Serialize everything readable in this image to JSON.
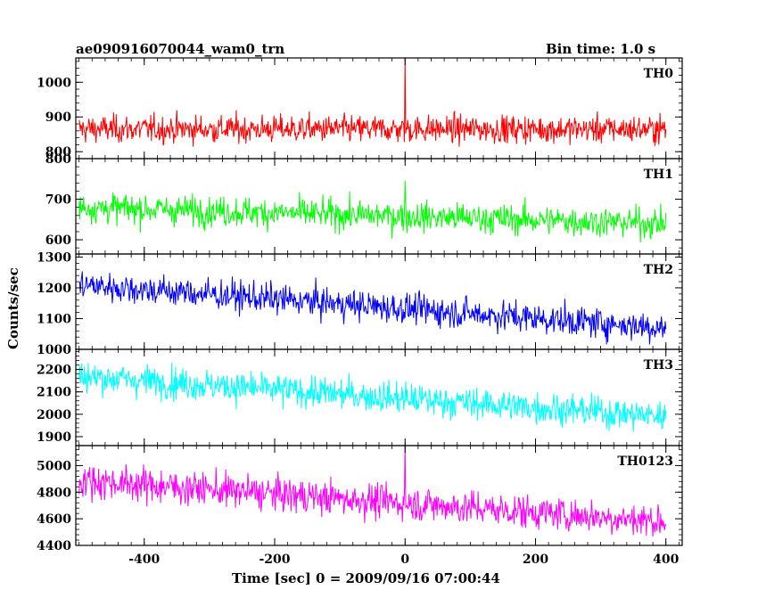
{
  "header": {
    "title_left": "ae090916070044_wam0_trn",
    "title_right": "Bin time: 1.0 s"
  },
  "chart_data": {
    "type": "line",
    "xlabel": "Time [sec] 0 = 2009/09/16 07:00:44",
    "ylabel": "Counts/sec",
    "xlim": [
      -505,
      425
    ],
    "xticks": [
      -400,
      -200,
      0,
      200,
      400
    ],
    "x_range": [
      -500,
      400
    ],
    "bin_time": 1.0,
    "panels": [
      {
        "name": "TH0",
        "color": "#ff0000",
        "ylim": [
          780,
          1070
        ],
        "yticks": [
          800,
          900,
          1000
        ],
        "start": 865,
        "end": 865,
        "noise": 28,
        "spike_value": 1075
      },
      {
        "name": "TH1",
        "color": "#00ff00",
        "ylim": [
          565,
          800
        ],
        "yticks": [
          600,
          700,
          800
        ],
        "start": 680,
        "end": 640,
        "noise": 26,
        "spike_value": 745
      },
      {
        "name": "TH2",
        "color": "#0000ff",
        "ylim": [
          1000,
          1310
        ],
        "yticks": [
          1000,
          1100,
          1200,
          1300
        ],
        "start": 1210,
        "end": 1070,
        "noise": 35,
        "spike_value": null
      },
      {
        "name": "TH3",
        "color": "#00ffff",
        "ylim": [
          1860,
          2290
        ],
        "yticks": [
          1900,
          2000,
          2100,
          2200
        ],
        "start": 2170,
        "end": 1990,
        "noise": 50,
        "spike_value": null
      },
      {
        "name": "TH0123",
        "color": "#ff00ff",
        "ylim": [
          4400,
          5150
        ],
        "yticks": [
          4400,
          4600,
          4800,
          5000
        ],
        "start": 4890,
        "end": 4580,
        "noise": 90,
        "spike_value": 5180
      }
    ]
  }
}
